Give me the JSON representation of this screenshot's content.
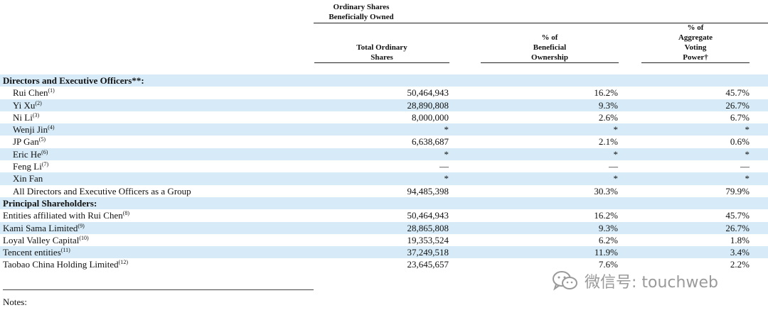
{
  "header": {
    "group_line1": "Ordinary Shares",
    "group_line2": "Beneficially Owned",
    "col1": [
      "Total Ordinary",
      "Shares"
    ],
    "col2": [
      "% of",
      "Beneficial",
      "Ownership"
    ],
    "col3": [
      "% of",
      "Aggregate",
      "Voting",
      "Power†"
    ]
  },
  "rows": [
    {
      "label": "Directors and Executive Officers**:",
      "note": "",
      "shares": "",
      "pct": "",
      "voting": "",
      "type": "section"
    },
    {
      "label": "Rui Chen",
      "note": "(1)",
      "shares": "50,464,943",
      "pct": "16.2%",
      "voting": "45.7%",
      "type": "indent"
    },
    {
      "label": "Yi Xu",
      "note": "(2)",
      "shares": "28,890,808",
      "pct": "9.3%",
      "voting": "26.7%",
      "type": "indent"
    },
    {
      "label": "Ni Li",
      "note": "(3)",
      "shares": "8,000,000",
      "pct": "2.6%",
      "voting": "6.7%",
      "type": "indent"
    },
    {
      "label": "Wenji Jin",
      "note": "(4)",
      "shares": "*",
      "pct": "*",
      "voting": "*",
      "type": "indent"
    },
    {
      "label": "JP Gan",
      "note": "(5)",
      "shares": "6,638,687",
      "pct": "2.1%",
      "voting": "0.6%",
      "type": "indent"
    },
    {
      "label": "Eric He",
      "note": "(6)",
      "shares": "*",
      "pct": "*",
      "voting": "*",
      "type": "indent"
    },
    {
      "label": "Feng Li",
      "note": "(7)",
      "shares": "—",
      "pct": "—",
      "voting": "—",
      "type": "indent"
    },
    {
      "label": "Xin Fan",
      "note": "",
      "shares": "*",
      "pct": "*",
      "voting": "*",
      "type": "indent"
    },
    {
      "label": "All Directors and Executive Officers as a Group",
      "note": "",
      "shares": "94,485,398",
      "pct": "30.3%",
      "voting": "79.9%",
      "type": "indent"
    },
    {
      "label": "Principal Shareholders:",
      "note": "",
      "shares": "",
      "pct": "",
      "voting": "",
      "type": "section"
    },
    {
      "label": "Entities affiliated with Rui Chen",
      "note": "(8)",
      "shares": "50,464,943",
      "pct": "16.2%",
      "voting": "45.7%",
      "type": "plain"
    },
    {
      "label": "Kami Sama Limited",
      "note": "(9)",
      "shares": "28,865,808",
      "pct": "9.3%",
      "voting": "26.7%",
      "type": "plain"
    },
    {
      "label": "Loyal Valley Capital",
      "note": "(10)",
      "shares": "19,353,524",
      "pct": "6.2%",
      "voting": "1.8%",
      "type": "plain"
    },
    {
      "label": "Tencent entities",
      "note": "(11)",
      "shares": "37,249,518",
      "pct": "11.9%",
      "voting": "3.4%",
      "type": "plain"
    },
    {
      "label": "Taobao China Holding Limited",
      "note": "(12)",
      "shares": "23,645,657",
      "pct": "7.6%",
      "voting": "2.2%",
      "type": "plain"
    }
  ],
  "notes_label": "Notes:",
  "watermark": {
    "text": "微信号: touchweb",
    "icon": "wechat-icon"
  }
}
